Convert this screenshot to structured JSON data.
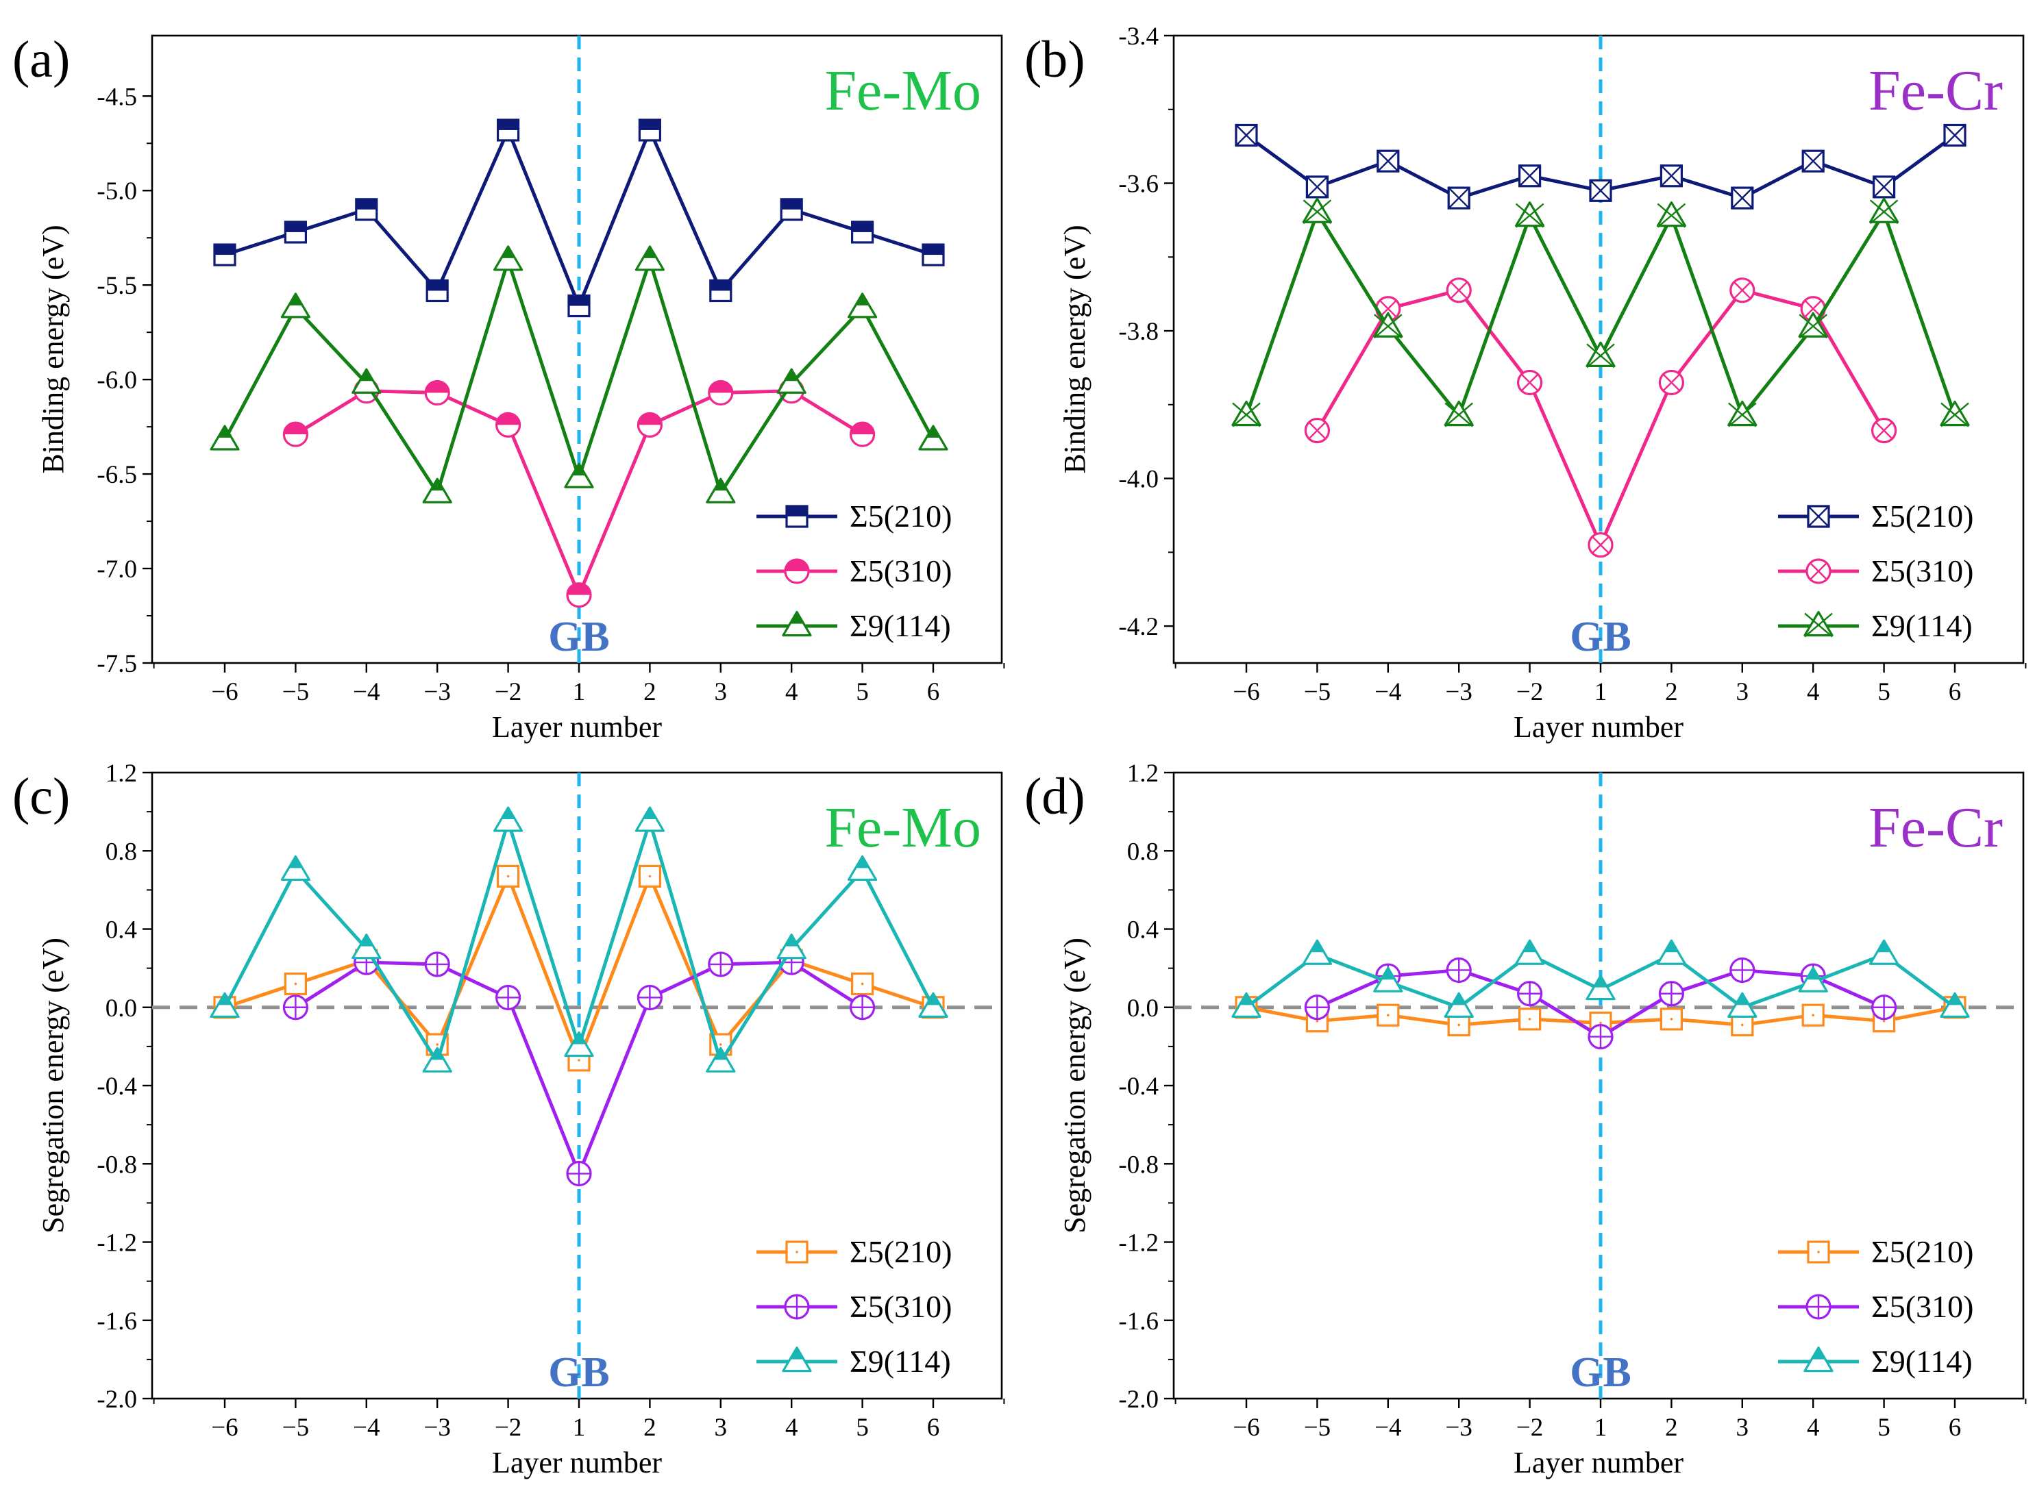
{
  "colors": {
    "navy": "#0d1a78",
    "pink": "#f0288c",
    "green": "#138013",
    "orange": "#ff8a1c",
    "purple": "#a020f0",
    "teal": "#1ab5b5",
    "gb_line": "#1fb4f0",
    "gb_text": "#4472c4",
    "title_femo": "#1ec24a",
    "title_fecr": "#9b30c8",
    "zero_line": "#909090"
  },
  "chart_data": [
    {
      "type": "line",
      "panel_label": "(a)",
      "title": "Fe-Mo",
      "xlabel": "Layer number",
      "ylabel": "Binding energy (eV)",
      "gb_label": "GB",
      "x_ticks": [
        "−6",
        "−5",
        "−4",
        "−3",
        "−2",
        "1",
        "2",
        "3",
        "4",
        "5",
        "6"
      ],
      "yticks": [
        -4.5,
        -5.0,
        -5.5,
        -6.0,
        -6.5,
        -7.0,
        -7.5
      ],
      "ytick_labels": [
        "-4.5",
        "-5.0",
        "-5.5",
        "-6.0",
        "-6.5",
        "-7.0",
        "-7.5"
      ],
      "ylim": [
        -7.5,
        -4.18
      ],
      "series": [
        {
          "name": "Σ5(210)",
          "color": "navy",
          "marker": "square-half",
          "positions": [
            0,
            1,
            2,
            3,
            4,
            5,
            6,
            7,
            8,
            9,
            10
          ],
          "values": [
            -5.34,
            -5.22,
            -5.1,
            -5.53,
            -4.68,
            -5.61,
            -4.68,
            -5.53,
            -5.1,
            -5.22,
            -5.34
          ]
        },
        {
          "name": "Σ5(310)",
          "color": "pink",
          "marker": "circle-half",
          "positions": [
            1,
            2,
            3,
            4,
            5,
            6,
            7,
            8,
            9
          ],
          "values": [
            -6.29,
            -6.06,
            -6.07,
            -6.24,
            -7.14,
            -6.24,
            -6.07,
            -6.06,
            -6.29
          ]
        },
        {
          "name": "Σ9(114)",
          "color": "green",
          "marker": "triangle-half",
          "positions": [
            0,
            1,
            2,
            3,
            4,
            5,
            6,
            7,
            8,
            9,
            10
          ],
          "values": [
            -6.32,
            -5.62,
            -6.02,
            -6.6,
            -5.37,
            -6.52,
            -5.37,
            -6.6,
            -6.02,
            -5.62,
            -6.32
          ]
        }
      ]
    },
    {
      "type": "line",
      "panel_label": "(b)",
      "title": "Fe-Cr",
      "xlabel": "Layer number",
      "ylabel": "Binding energy (eV)",
      "gb_label": "GB",
      "x_ticks": [
        "−6",
        "−5",
        "−4",
        "−3",
        "−2",
        "1",
        "2",
        "3",
        "4",
        "5",
        "6"
      ],
      "yticks": [
        -3.4,
        -3.6,
        -3.8,
        -4.0,
        -4.2
      ],
      "ytick_labels": [
        "-3.4",
        "-3.6",
        "-3.8",
        "-4.0",
        "-4.2"
      ],
      "ylim": [
        -4.25,
        -3.4
      ],
      "series": [
        {
          "name": "Σ5(210)",
          "color": "navy",
          "marker": "square-x",
          "positions": [
            0,
            1,
            2,
            3,
            4,
            5,
            6,
            7,
            8,
            9,
            10
          ],
          "values": [
            -3.535,
            -3.605,
            -3.57,
            -3.62,
            -3.59,
            -3.61,
            -3.59,
            -3.62,
            -3.57,
            -3.605,
            -3.535
          ]
        },
        {
          "name": "Σ5(310)",
          "color": "pink",
          "marker": "circle-x",
          "positions": [
            1,
            2,
            3,
            4,
            5,
            6,
            7,
            8,
            9
          ],
          "values": [
            -3.935,
            -3.77,
            -3.745,
            -3.87,
            -4.09,
            -3.87,
            -3.745,
            -3.77,
            -3.935
          ]
        },
        {
          "name": "Σ9(114)",
          "color": "green",
          "marker": "triangle-x",
          "positions": [
            0,
            1,
            2,
            3,
            4,
            5,
            6,
            7,
            8,
            9,
            10
          ],
          "values": [
            -3.915,
            -3.64,
            -3.795,
            -3.915,
            -3.645,
            -3.835,
            -3.645,
            -3.915,
            -3.795,
            -3.64,
            -3.915
          ]
        }
      ]
    },
    {
      "type": "line",
      "panel_label": "(c)",
      "title": "Fe-Mo",
      "xlabel": "Layer number",
      "ylabel": "Segregation energy (eV)",
      "gb_label": "GB",
      "x_ticks": [
        "−6",
        "−5",
        "−4",
        "−3",
        "−2",
        "1",
        "2",
        "3",
        "4",
        "5",
        "6"
      ],
      "yticks": [
        1.2,
        0.8,
        0.4,
        0.0,
        -0.4,
        -0.8,
        -1.2,
        -1.6,
        -2.0
      ],
      "ytick_labels": [
        "1.2",
        "0.8",
        "0.4",
        "0.0",
        "-0.4",
        "-0.8",
        "-1.2",
        "-1.6",
        "-2.0"
      ],
      "ylim": [
        -2.0,
        1.2
      ],
      "zero_line": 0.0,
      "series": [
        {
          "name": "Σ5(210)",
          "color": "orange",
          "marker": "square-open",
          "positions": [
            0,
            1,
            2,
            3,
            4,
            5,
            6,
            7,
            8,
            9,
            10
          ],
          "values": [
            0.0,
            0.12,
            0.24,
            -0.19,
            0.67,
            -0.27,
            0.67,
            -0.19,
            0.24,
            0.12,
            0.0
          ]
        },
        {
          "name": "Σ5(310)",
          "color": "purple",
          "marker": "circle-plus",
          "positions": [
            1,
            2,
            3,
            4,
            5,
            6,
            7,
            8,
            9
          ],
          "values": [
            0.0,
            0.23,
            0.22,
            0.05,
            -0.85,
            0.05,
            0.22,
            0.23,
            0.0
          ]
        },
        {
          "name": "Σ9(114)",
          "color": "teal",
          "marker": "triangle-half",
          "positions": [
            0,
            1,
            2,
            3,
            4,
            5,
            6,
            7,
            8,
            9,
            10
          ],
          "values": [
            0.0,
            0.7,
            0.3,
            -0.28,
            0.95,
            -0.2,
            0.95,
            -0.28,
            0.3,
            0.7,
            0.0
          ]
        }
      ]
    },
    {
      "type": "line",
      "panel_label": "(d)",
      "title": "Fe-Cr",
      "xlabel": "Layer number",
      "ylabel": "Segregation energy (eV)",
      "gb_label": "GB",
      "x_ticks": [
        "−6",
        "−5",
        "−4",
        "−3",
        "−2",
        "1",
        "2",
        "3",
        "4",
        "5",
        "6"
      ],
      "yticks": [
        1.2,
        0.8,
        0.4,
        0.0,
        -0.4,
        -0.8,
        -1.2,
        -1.6,
        -2.0
      ],
      "ytick_labels": [
        "1.2",
        "0.8",
        "0.4",
        "0.0",
        "-0.4",
        "-0.8",
        "-1.2",
        "-1.6",
        "-2.0"
      ],
      "ylim": [
        -2.0,
        1.2
      ],
      "zero_line": 0.0,
      "series": [
        {
          "name": "Σ5(210)",
          "color": "orange",
          "marker": "square-open",
          "positions": [
            0,
            1,
            2,
            3,
            4,
            5,
            6,
            7,
            8,
            9,
            10
          ],
          "values": [
            0.0,
            -0.07,
            -0.04,
            -0.09,
            -0.06,
            -0.08,
            -0.06,
            -0.09,
            -0.04,
            -0.07,
            0.0
          ]
        },
        {
          "name": "Σ5(310)",
          "color": "purple",
          "marker": "circle-plus",
          "positions": [
            1,
            2,
            3,
            4,
            5,
            6,
            7,
            8,
            9
          ],
          "values": [
            0.0,
            0.16,
            0.19,
            0.07,
            -0.15,
            0.07,
            0.19,
            0.16,
            0.0
          ]
        },
        {
          "name": "Σ9(114)",
          "color": "teal",
          "marker": "triangle-half",
          "positions": [
            0,
            1,
            2,
            3,
            4,
            5,
            6,
            7,
            8,
            9,
            10
          ],
          "values": [
            0.0,
            0.27,
            0.13,
            0.0,
            0.27,
            0.09,
            0.27,
            0.0,
            0.13,
            0.27,
            0.0
          ]
        }
      ]
    }
  ]
}
